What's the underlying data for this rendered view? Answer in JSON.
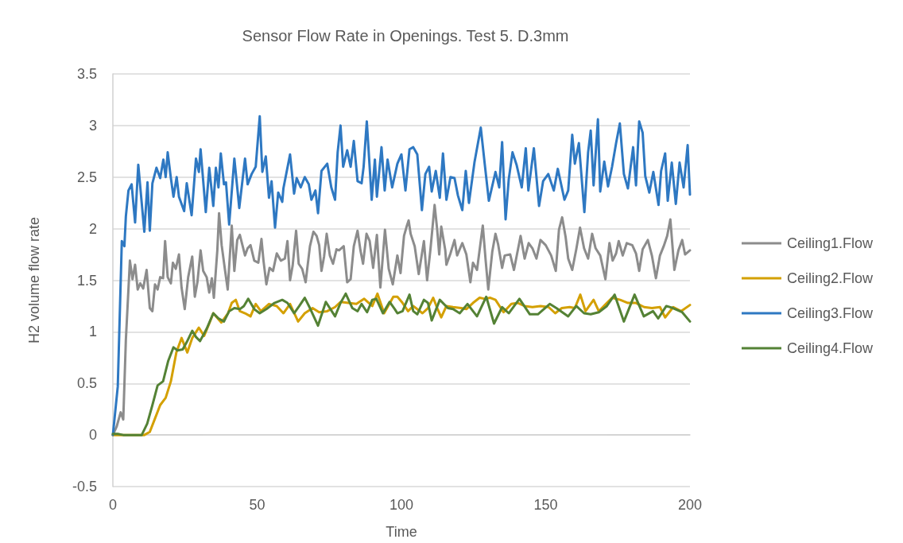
{
  "chart_data": {
    "type": "line",
    "title": "Sensor Flow Rate in Openings. Test 5. D.3mm",
    "xlabel": "Time",
    "ylabel": "H2 volume flow rate",
    "xlim": [
      0,
      200
    ],
    "xticks": [
      0,
      50,
      100,
      150,
      200
    ],
    "ylim": [
      -0.5,
      3.5
    ],
    "yticks": [
      -0.5,
      0,
      0.5,
      1,
      1.5,
      2,
      2.5,
      3,
      3.5
    ],
    "grid": "y",
    "legend": "right",
    "marker": "none",
    "line_style": "solid",
    "series": [
      {
        "name": "Ceiling1.Flow",
        "color": "#8c8c8c",
        "x": [
          0,
          1.3,
          2.7,
          3.6,
          4.5,
          5.9,
          6.8,
          7.7,
          8.6,
          9.5,
          10.5,
          11.7,
          12.8,
          13.7,
          14.6,
          15.5,
          16.4,
          17.4,
          18.1,
          19.0,
          20.1,
          20.8,
          21.8,
          22.9,
          23.8,
          24.9,
          26.1,
          27.5,
          28.4,
          29.3,
          30.4,
          31.3,
          32.5,
          33.4,
          34.3,
          35.0,
          36.2,
          36.8,
          37.7,
          38.9,
          39.8,
          41.2,
          42.1,
          43.1,
          44.0,
          44.9,
          45.8,
          46.7,
          47.7,
          49.0,
          50.4,
          51.5,
          52.2,
          53.2,
          54.3,
          55.5,
          56.8,
          58.2,
          59.6,
          60.5,
          61.4,
          62.3,
          63.5,
          64.4,
          65.6,
          66.8,
          68.3,
          69.5,
          70.6,
          71.5,
          72.3,
          73.2,
          74.1,
          75.2,
          76.3,
          77.5,
          78.4,
          80.0,
          81.2,
          82.4,
          83.5,
          84.8,
          85.8,
          86.7,
          87.9,
          89.0,
          90.2,
          91.5,
          92.7,
          94.3,
          95.6,
          97.0,
          98.6,
          99.7,
          100.9,
          101.8,
          102.5,
          103.2,
          104.6,
          106.0,
          107.8,
          108.9,
          110.1,
          111.5,
          112.4,
          113.1,
          113.8,
          115.2,
          115.6,
          117.0,
          118.4,
          119.3,
          121.1,
          122.5,
          123.9,
          124.8,
          126.2,
          128.2,
          129.2,
          130.1,
          131.5,
          132.6,
          133.5,
          134.9,
          135.8,
          137.7,
          139.0,
          141.3,
          142.7,
          144.1,
          145.4,
          146.8,
          148.2,
          150.0,
          151.9,
          153.5,
          154.6,
          155.7,
          156.9,
          157.8,
          159.2,
          160.6,
          161.9,
          163.3,
          164.7,
          166.1,
          167.3,
          168.9,
          170.7,
          172.1,
          173.2,
          174.4,
          175.3,
          176.7,
          178.1,
          180.0,
          181.3,
          182.4,
          183.6,
          185.4,
          186.8,
          188.2,
          189.6,
          190.9,
          192.1,
          193.2,
          194.6,
          196.0,
          197.3,
          198.3,
          200
        ],
        "values": [
          0,
          0.08,
          0.22,
          0.15,
          0.92,
          1.69,
          1.51,
          1.65,
          1.41,
          1.47,
          1.42,
          1.6,
          1.23,
          1.2,
          1.46,
          1.41,
          1.53,
          1.52,
          1.88,
          1.53,
          1.47,
          1.67,
          1.61,
          1.75,
          1.43,
          1.22,
          1.53,
          1.73,
          1.34,
          1.48,
          1.79,
          1.59,
          1.53,
          1.38,
          1.52,
          1.33,
          1.79,
          2.15,
          1.84,
          1.59,
          1.41,
          2.03,
          1.59,
          1.89,
          1.94,
          1.84,
          1.74,
          1.81,
          1.84,
          1.69,
          1.67,
          1.9,
          1.69,
          1.46,
          1.62,
          1.59,
          1.76,
          1.69,
          1.71,
          1.88,
          1.5,
          1.64,
          1.98,
          1.66,
          1.61,
          1.48,
          1.83,
          1.97,
          1.93,
          1.84,
          1.59,
          1.73,
          1.95,
          1.74,
          1.66,
          1.8,
          1.79,
          1.83,
          1.48,
          1.51,
          1.83,
          1.98,
          1.79,
          1.66,
          1.95,
          1.88,
          1.62,
          1.94,
          1.43,
          1.99,
          1.61,
          1.46,
          1.74,
          1.57,
          1.93,
          2.02,
          2.08,
          1.95,
          1.83,
          1.56,
          1.88,
          1.5,
          1.81,
          2.23,
          1.99,
          1.75,
          2.02,
          1.79,
          1.65,
          1.76,
          1.89,
          1.74,
          1.86,
          1.75,
          1.48,
          1.67,
          1.6,
          2.03,
          1.69,
          1.41,
          1.78,
          1.95,
          1.85,
          1.62,
          1.74,
          1.75,
          1.6,
          1.93,
          1.71,
          1.86,
          1.81,
          1.71,
          1.89,
          1.84,
          1.74,
          1.59,
          1.99,
          2.11,
          1.92,
          1.71,
          1.6,
          1.8,
          2.01,
          1.81,
          1.71,
          1.95,
          1.81,
          1.74,
          1.51,
          1.86,
          1.69,
          1.76,
          1.88,
          1.74,
          1.86,
          1.84,
          1.76,
          1.59,
          1.8,
          1.89,
          1.74,
          1.52,
          1.74,
          1.83,
          1.93,
          2.09,
          1.6,
          1.79,
          1.89,
          1.75,
          1.79
        ]
      },
      {
        "name": "Ceiling2.Flow",
        "color": "#d4a000",
        "x": [
          0,
          10.9,
          12.8,
          14.6,
          16.4,
          18.3,
          20.1,
          22.0,
          23.8,
          25.8,
          27.5,
          29.8,
          31.6,
          33.4,
          34.8,
          37.6,
          39.9,
          41.2,
          42.6,
          44.0,
          45.8,
          47.7,
          49.5,
          51.3,
          54.1,
          56.8,
          59.1,
          61.4,
          64.2,
          66.5,
          69.2,
          71.5,
          74.3,
          77.0,
          78.9,
          81.6,
          84.4,
          87.1,
          89.9,
          91.7,
          94.0,
          97.2,
          98.6,
          100.4,
          102.3,
          104.1,
          107.3,
          109.2,
          111.0,
          112.4,
          113.8,
          115.6,
          117.9,
          120.7,
          122.5,
          124.8,
          127.1,
          128.9,
          130.8,
          132.6,
          135.4,
          138.1,
          140.4,
          142.7,
          145.4,
          148.2,
          151.0,
          153.3,
          155.6,
          158.3,
          160.1,
          162.0,
          163.8,
          166.6,
          168.4,
          171.2,
          173.0,
          175.8,
          178.5,
          181.3,
          184.1,
          186.8,
          189.6,
          191.4,
          194.2,
          196.9,
          200
        ],
        "values": [
          0,
          0,
          0.03,
          0.16,
          0.29,
          0.36,
          0.52,
          0.8,
          0.94,
          0.8,
          0.94,
          1.04,
          0.96,
          1.08,
          1.18,
          1.09,
          1.18,
          1.28,
          1.31,
          1.2,
          1.18,
          1.15,
          1.27,
          1.2,
          1.27,
          1.25,
          1.18,
          1.27,
          1.1,
          1.18,
          1.23,
          1.19,
          1.2,
          1.24,
          1.29,
          1.28,
          1.27,
          1.32,
          1.25,
          1.37,
          1.18,
          1.34,
          1.34,
          1.28,
          1.2,
          1.25,
          1.18,
          1.23,
          1.33,
          1.23,
          1.14,
          1.25,
          1.24,
          1.23,
          1.22,
          1.28,
          1.33,
          1.32,
          1.33,
          1.31,
          1.19,
          1.27,
          1.28,
          1.25,
          1.24,
          1.25,
          1.24,
          1.18,
          1.23,
          1.24,
          1.23,
          1.36,
          1.2,
          1.31,
          1.2,
          1.28,
          1.33,
          1.31,
          1.28,
          1.28,
          1.24,
          1.23,
          1.24,
          1.14,
          1.24,
          1.2,
          1.26
        ]
      },
      {
        "name": "Ceiling3.Flow",
        "color": "#2e78c2",
        "x": [
          0,
          1.7,
          3.1,
          4.0,
          4.5,
          5.4,
          6.5,
          7.7,
          8.8,
          10.9,
          12.0,
          12.8,
          13.7,
          15.1,
          16.4,
          17.5,
          18.3,
          19.0,
          20.1,
          21.0,
          22.1,
          22.9,
          24.7,
          25.6,
          27.3,
          28.8,
          29.8,
          30.4,
          32.2,
          33.4,
          34.8,
          35.7,
          36.6,
          37.4,
          38.5,
          39.2,
          40.3,
          42.1,
          43.8,
          45.8,
          46.7,
          48.1,
          49.5,
          50.9,
          51.8,
          53.0,
          54.1,
          55.0,
          56.2,
          57.3,
          58.7,
          59.1,
          61.4,
          62.8,
          63.7,
          65.1,
          66.5,
          67.9,
          68.8,
          70.2,
          71.1,
          72.3,
          74.3,
          75.7,
          77.0,
          77.9,
          78.9,
          79.8,
          81.2,
          82.4,
          83.5,
          84.8,
          86.2,
          86.9,
          88.0,
          89.7,
          90.8,
          91.5,
          93.1,
          94.2,
          95.2,
          96.8,
          98.6,
          100.0,
          101.4,
          102.8,
          104.1,
          105.5,
          107.1,
          108.3,
          109.6,
          110.5,
          111.9,
          113.3,
          114.4,
          115.6,
          117.0,
          118.4,
          119.6,
          121.1,
          122.3,
          123.4,
          125.3,
          127.5,
          128.9,
          130.3,
          132.6,
          133.9,
          134.9,
          136.1,
          137.2,
          138.5,
          139.9,
          141.7,
          143.1,
          144.0,
          145.9,
          147.7,
          149.1,
          150.9,
          152.8,
          154.2,
          156.5,
          157.8,
          159.2,
          160.1,
          161.5,
          163.4,
          164.7,
          165.6,
          166.6,
          168.1,
          168.9,
          170.3,
          171.6,
          173.0,
          174.4,
          175.7,
          177.1,
          178.5,
          180.3,
          181.3,
          182.4,
          183.6,
          184.5,
          185.9,
          187.3,
          189.1,
          190.0,
          191.4,
          192.3,
          193.7,
          195.1,
          196.4,
          197.8,
          199.2,
          200
        ],
        "values": [
          0,
          0.47,
          1.88,
          1.83,
          2.12,
          2.37,
          2.43,
          2.06,
          2.62,
          1.97,
          2.45,
          1.98,
          2.44,
          2.59,
          2.49,
          2.67,
          2.5,
          2.74,
          2.49,
          2.31,
          2.5,
          2.31,
          2.17,
          2.44,
          2.13,
          2.68,
          2.55,
          2.77,
          2.16,
          2.59,
          2.22,
          2.59,
          2.4,
          2.73,
          2.43,
          2.45,
          2.04,
          2.68,
          2.2,
          2.68,
          2.43,
          2.53,
          2.6,
          3.09,
          2.55,
          2.7,
          2.3,
          2.46,
          2.01,
          2.35,
          2.26,
          2.39,
          2.72,
          2.34,
          2.49,
          2.4,
          2.5,
          2.43,
          2.28,
          2.37,
          2.15,
          2.56,
          2.63,
          2.4,
          2.28,
          2.74,
          3.0,
          2.6,
          2.76,
          2.6,
          2.85,
          2.46,
          2.44,
          2.6,
          3.04,
          2.28,
          2.67,
          2.31,
          2.79,
          2.37,
          2.67,
          2.4,
          2.63,
          2.72,
          2.37,
          2.77,
          2.79,
          2.72,
          2.18,
          2.53,
          2.6,
          2.36,
          2.56,
          2.3,
          2.73,
          2.28,
          2.5,
          2.49,
          2.32,
          2.18,
          2.56,
          2.25,
          2.64,
          2.98,
          2.62,
          2.27,
          2.55,
          2.4,
          2.84,
          2.09,
          2.48,
          2.74,
          2.62,
          2.4,
          2.78,
          2.37,
          2.78,
          2.22,
          2.46,
          2.53,
          2.37,
          2.58,
          2.28,
          2.37,
          2.91,
          2.63,
          2.83,
          2.16,
          2.74,
          2.95,
          2.42,
          3.06,
          2.36,
          2.65,
          2.41,
          2.6,
          2.83,
          3.02,
          2.53,
          2.39,
          2.79,
          2.42,
          3.04,
          2.93,
          2.51,
          2.35,
          2.55,
          2.23,
          2.56,
          2.73,
          2.27,
          2.64,
          2.24,
          2.64,
          2.4,
          2.81,
          2.33
        ]
      },
      {
        "name": "Ceiling4.Flow",
        "color": "#548235",
        "x": [
          0,
          1.7,
          3.6,
          10.0,
          11.9,
          13.7,
          15.5,
          17.4,
          19.2,
          21.0,
          22.4,
          24.2,
          25.6,
          27.5,
          28.8,
          30.2,
          32.5,
          34.8,
          36.6,
          38.5,
          40.3,
          42.1,
          44.0,
          45.4,
          46.9,
          49.0,
          50.9,
          53.2,
          56.0,
          58.7,
          60.5,
          62.8,
          64.6,
          66.5,
          68.3,
          71.1,
          73.8,
          77.0,
          78.9,
          80.7,
          83.0,
          84.8,
          86.2,
          88.1,
          89.9,
          91.3,
          93.6,
          95.9,
          97.7,
          98.6,
          100.4,
          102.8,
          104.1,
          105.5,
          107.8,
          109.2,
          110.5,
          113.3,
          116.1,
          117.9,
          120.2,
          122.9,
          126.2,
          129.4,
          132.1,
          134.9,
          137.2,
          140.9,
          144.5,
          147.3,
          151.4,
          153.7,
          157.8,
          160.6,
          163.3,
          165.6,
          168.4,
          171.2,
          173.9,
          177.1,
          180.8,
          184.0,
          187.2,
          189.0,
          191.8,
          194.1,
          197.3,
          200
        ],
        "values": [
          0.01,
          0.01,
          0,
          0,
          0.11,
          0.29,
          0.48,
          0.52,
          0.72,
          0.85,
          0.82,
          0.83,
          0.9,
          1.01,
          0.95,
          0.91,
          1.03,
          1.18,
          1.13,
          1.1,
          1.2,
          1.23,
          1.22,
          1.25,
          1.32,
          1.22,
          1.18,
          1.22,
          1.28,
          1.31,
          1.28,
          1.18,
          1.25,
          1.33,
          1.23,
          1.06,
          1.29,
          1.15,
          1.28,
          1.37,
          1.23,
          1.2,
          1.27,
          1.19,
          1.31,
          1.32,
          1.18,
          1.29,
          1.22,
          1.18,
          1.2,
          1.36,
          1.2,
          1.17,
          1.31,
          1.28,
          1.11,
          1.31,
          1.23,
          1.22,
          1.18,
          1.27,
          1.15,
          1.34,
          1.08,
          1.24,
          1.18,
          1.32,
          1.17,
          1.17,
          1.27,
          1.23,
          1.15,
          1.25,
          1.18,
          1.17,
          1.19,
          1.25,
          1.36,
          1.1,
          1.36,
          1.15,
          1.2,
          1.13,
          1.25,
          1.23,
          1.19,
          1.1
        ]
      }
    ]
  }
}
